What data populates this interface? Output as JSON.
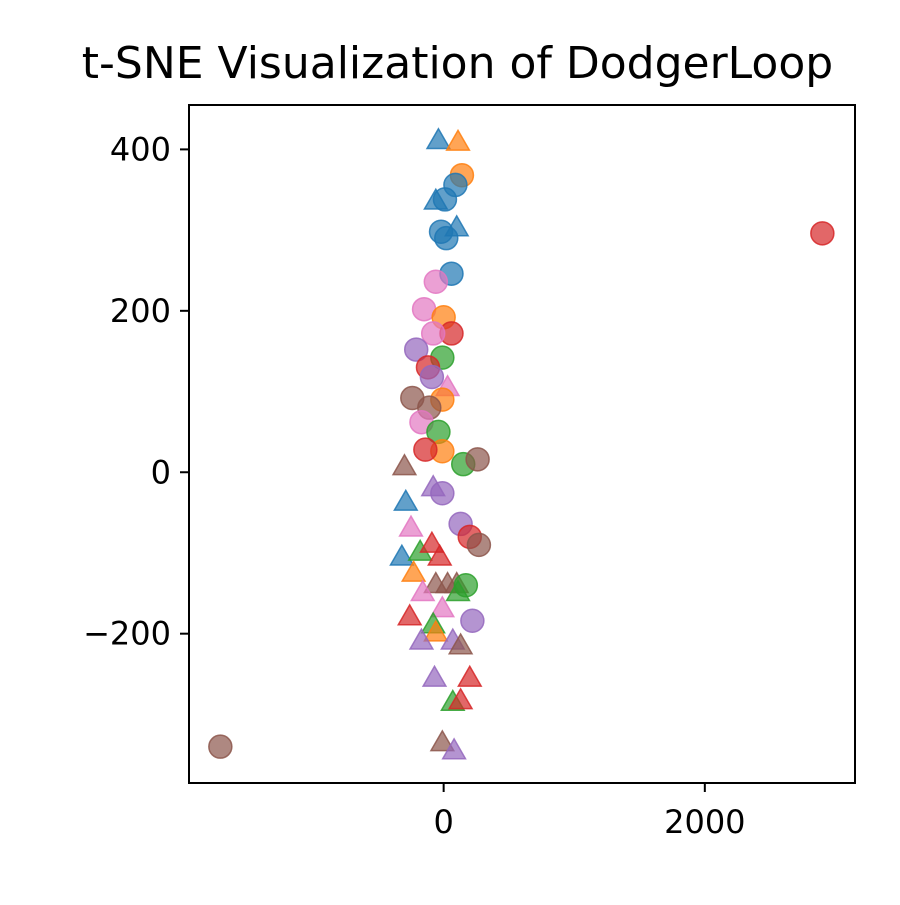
{
  "chart_data": {
    "type": "scatter",
    "title": "t-SNE Visualization of DodgerLoop",
    "xlabel": "",
    "ylabel": "",
    "xlim": [
      -1950,
      3150
    ],
    "ylim": [
      -385,
      455
    ],
    "xticks": [
      0,
      2000
    ],
    "xtick_labels": [
      "0",
      "2000"
    ],
    "yticks": [
      400,
      200,
      0,
      -200
    ],
    "ytick_labels": [
      "400",
      "200",
      "0",
      "−200"
    ],
    "grid": false,
    "legend": "none",
    "marker_opacity": 0.7,
    "points": [
      {
        "x": -40,
        "y": 410,
        "marker": "triangle",
        "color": "#1f77b4"
      },
      {
        "x": 110,
        "y": 408,
        "marker": "triangle",
        "color": "#ff7f0e"
      },
      {
        "x": 140,
        "y": 368,
        "marker": "circle",
        "color": "#ff7f0e"
      },
      {
        "x": 90,
        "y": 356,
        "marker": "circle",
        "color": "#1f77b4"
      },
      {
        "x": 10,
        "y": 338,
        "marker": "circle",
        "color": "#1f77b4"
      },
      {
        "x": -60,
        "y": 335,
        "marker": "triangle",
        "color": "#1f77b4"
      },
      {
        "x": -300,
        "y": 6,
        "marker": "triangle",
        "color": "#8c564b"
      },
      {
        "x": -290,
        "y": -38,
        "marker": "triangle",
        "color": "#1f77b4"
      },
      {
        "x": -20,
        "y": 298,
        "marker": "circle",
        "color": "#1f77b4"
      },
      {
        "x": 100,
        "y": 302,
        "marker": "triangle",
        "color": "#1f77b4"
      },
      {
        "x": 20,
        "y": 290,
        "marker": "circle",
        "color": "#1f77b4"
      },
      {
        "x": 60,
        "y": 246,
        "marker": "circle",
        "color": "#1f77b4"
      },
      {
        "x": -60,
        "y": 236,
        "marker": "circle",
        "color": "#e377c2"
      },
      {
        "x": -150,
        "y": 202,
        "marker": "circle",
        "color": "#e377c2"
      },
      {
        "x": 0,
        "y": 192,
        "marker": "circle",
        "color": "#ff7f0e"
      },
      {
        "x": 60,
        "y": 172,
        "marker": "circle",
        "color": "#d62728"
      },
      {
        "x": -80,
        "y": 172,
        "marker": "circle",
        "color": "#e377c2"
      },
      {
        "x": -210,
        "y": 152,
        "marker": "circle",
        "color": "#9467bd"
      },
      {
        "x": -10,
        "y": 142,
        "marker": "circle",
        "color": "#2ca02c"
      },
      {
        "x": -120,
        "y": 130,
        "marker": "circle",
        "color": "#d62728"
      },
      {
        "x": -90,
        "y": 118,
        "marker": "circle",
        "color": "#9467bd"
      },
      {
        "x": 30,
        "y": 104,
        "marker": "triangle",
        "color": "#e377c2"
      },
      {
        "x": -240,
        "y": 92,
        "marker": "circle",
        "color": "#8c564b"
      },
      {
        "x": -10,
        "y": 90,
        "marker": "circle",
        "color": "#ff7f0e"
      },
      {
        "x": -110,
        "y": 80,
        "marker": "circle",
        "color": "#8c564b"
      },
      {
        "x": -170,
        "y": 62,
        "marker": "circle",
        "color": "#e377c2"
      },
      {
        "x": -40,
        "y": 50,
        "marker": "circle",
        "color": "#2ca02c"
      },
      {
        "x": -10,
        "y": 26,
        "marker": "circle",
        "color": "#ff7f0e"
      },
      {
        "x": -140,
        "y": 28,
        "marker": "circle",
        "color": "#d62728"
      },
      {
        "x": 150,
        "y": 10,
        "marker": "circle",
        "color": "#2ca02c"
      },
      {
        "x": 260,
        "y": 16,
        "marker": "circle",
        "color": "#8c564b"
      },
      {
        "x": -80,
        "y": -20,
        "marker": "triangle",
        "color": "#9467bd"
      },
      {
        "x": -10,
        "y": -26,
        "marker": "circle",
        "color": "#9467bd"
      },
      {
        "x": 130,
        "y": -64,
        "marker": "circle",
        "color": "#9467bd"
      },
      {
        "x": 200,
        "y": -80,
        "marker": "circle",
        "color": "#d62728"
      },
      {
        "x": 270,
        "y": -90,
        "marker": "circle",
        "color": "#8c564b"
      },
      {
        "x": -250,
        "y": -70,
        "marker": "triangle",
        "color": "#e377c2"
      },
      {
        "x": -320,
        "y": -106,
        "marker": "triangle",
        "color": "#1f77b4"
      },
      {
        "x": -180,
        "y": -100,
        "marker": "triangle",
        "color": "#2ca02c"
      },
      {
        "x": -90,
        "y": -90,
        "marker": "triangle",
        "color": "#d62728"
      },
      {
        "x": -30,
        "y": -106,
        "marker": "triangle",
        "color": "#d62728"
      },
      {
        "x": -230,
        "y": -126,
        "marker": "triangle",
        "color": "#ff7f0e"
      },
      {
        "x": 30,
        "y": -140,
        "marker": "triangle",
        "color": "#8c564b"
      },
      {
        "x": 100,
        "y": -140,
        "marker": "triangle",
        "color": "#8c564b"
      },
      {
        "x": 170,
        "y": -140,
        "marker": "circle",
        "color": "#2ca02c"
      },
      {
        "x": -60,
        "y": -140,
        "marker": "triangle",
        "color": "#8c564b"
      },
      {
        "x": -160,
        "y": -150,
        "marker": "triangle",
        "color": "#e377c2"
      },
      {
        "x": 110,
        "y": -150,
        "marker": "triangle",
        "color": "#2ca02c"
      },
      {
        "x": -10,
        "y": -170,
        "marker": "triangle",
        "color": "#e377c2"
      },
      {
        "x": 220,
        "y": -184,
        "marker": "circle",
        "color": "#9467bd"
      },
      {
        "x": -260,
        "y": -180,
        "marker": "triangle",
        "color": "#d62728"
      },
      {
        "x": -80,
        "y": -190,
        "marker": "triangle",
        "color": "#2ca02c"
      },
      {
        "x": -60,
        "y": -200,
        "marker": "triangle",
        "color": "#ff7f0e"
      },
      {
        "x": -170,
        "y": -210,
        "marker": "triangle",
        "color": "#9467bd"
      },
      {
        "x": 70,
        "y": -210,
        "marker": "triangle",
        "color": "#9467bd"
      },
      {
        "x": 130,
        "y": -216,
        "marker": "triangle",
        "color": "#8c564b"
      },
      {
        "x": 200,
        "y": -256,
        "marker": "triangle",
        "color": "#d62728"
      },
      {
        "x": -70,
        "y": -256,
        "marker": "triangle",
        "color": "#9467bd"
      },
      {
        "x": 70,
        "y": -286,
        "marker": "triangle",
        "color": "#2ca02c"
      },
      {
        "x": 130,
        "y": -284,
        "marker": "triangle",
        "color": "#d62728"
      },
      {
        "x": -10,
        "y": -336,
        "marker": "triangle",
        "color": "#8c564b"
      },
      {
        "x": 80,
        "y": -346,
        "marker": "triangle",
        "color": "#9467bd"
      },
      {
        "x": -1710,
        "y": -340,
        "marker": "circle",
        "color": "#8c564b"
      },
      {
        "x": 2900,
        "y": 296,
        "marker": "circle",
        "color": "#d62728"
      }
    ]
  }
}
